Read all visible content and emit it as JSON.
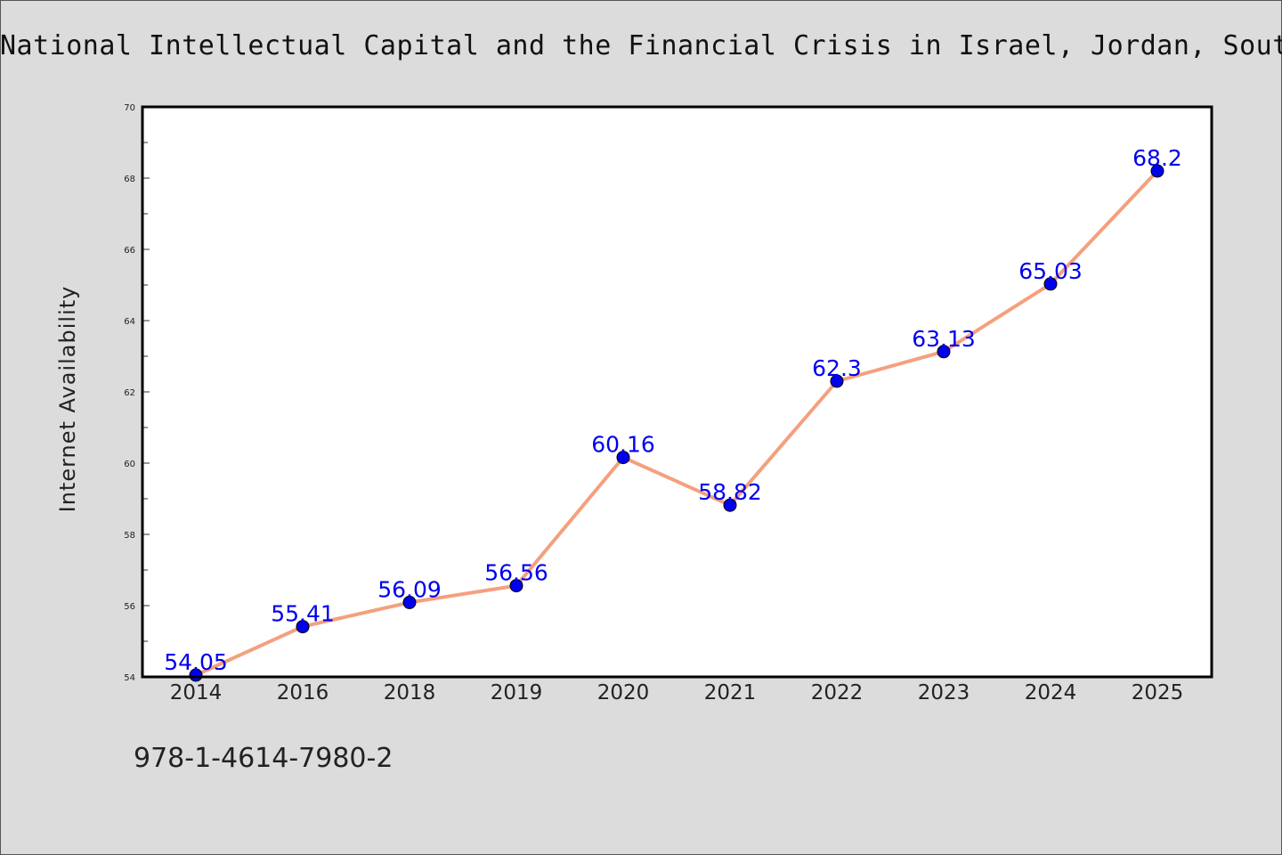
{
  "chart_data": {
    "type": "line",
    "title": "National Intellectual Capital and the Financial Crisis in Israel, Jordan, South",
    "xlabel": "",
    "ylabel": "Internet Availability",
    "categories": [
      "2014",
      "2016",
      "2018",
      "2019",
      "2020",
      "2021",
      "2022",
      "2023",
      "2024",
      "2025"
    ],
    "series": [
      {
        "values": [
          54.05,
          55.41,
          56.09,
          56.56,
          60.16,
          58.82,
          62.3,
          63.13,
          65.03,
          68.2
        ]
      }
    ],
    "data_labels": [
      "54.05",
      "55.41",
      "56.09",
      "56.56",
      "60.16",
      "58.82",
      "62.3",
      "63.13",
      "65.03",
      "68.2"
    ],
    "ylim": [
      54,
      70
    ],
    "yticks": [
      54,
      56,
      58,
      60,
      62,
      64,
      66,
      68,
      70
    ],
    "grid": false,
    "colors": {
      "line": "#f4a07e",
      "marker": "#0000ee",
      "label": "#0000ee",
      "background": "#dcdcdc",
      "plot_bg": "#ffffff"
    }
  },
  "footnote": "978-1-4614-7980-2"
}
